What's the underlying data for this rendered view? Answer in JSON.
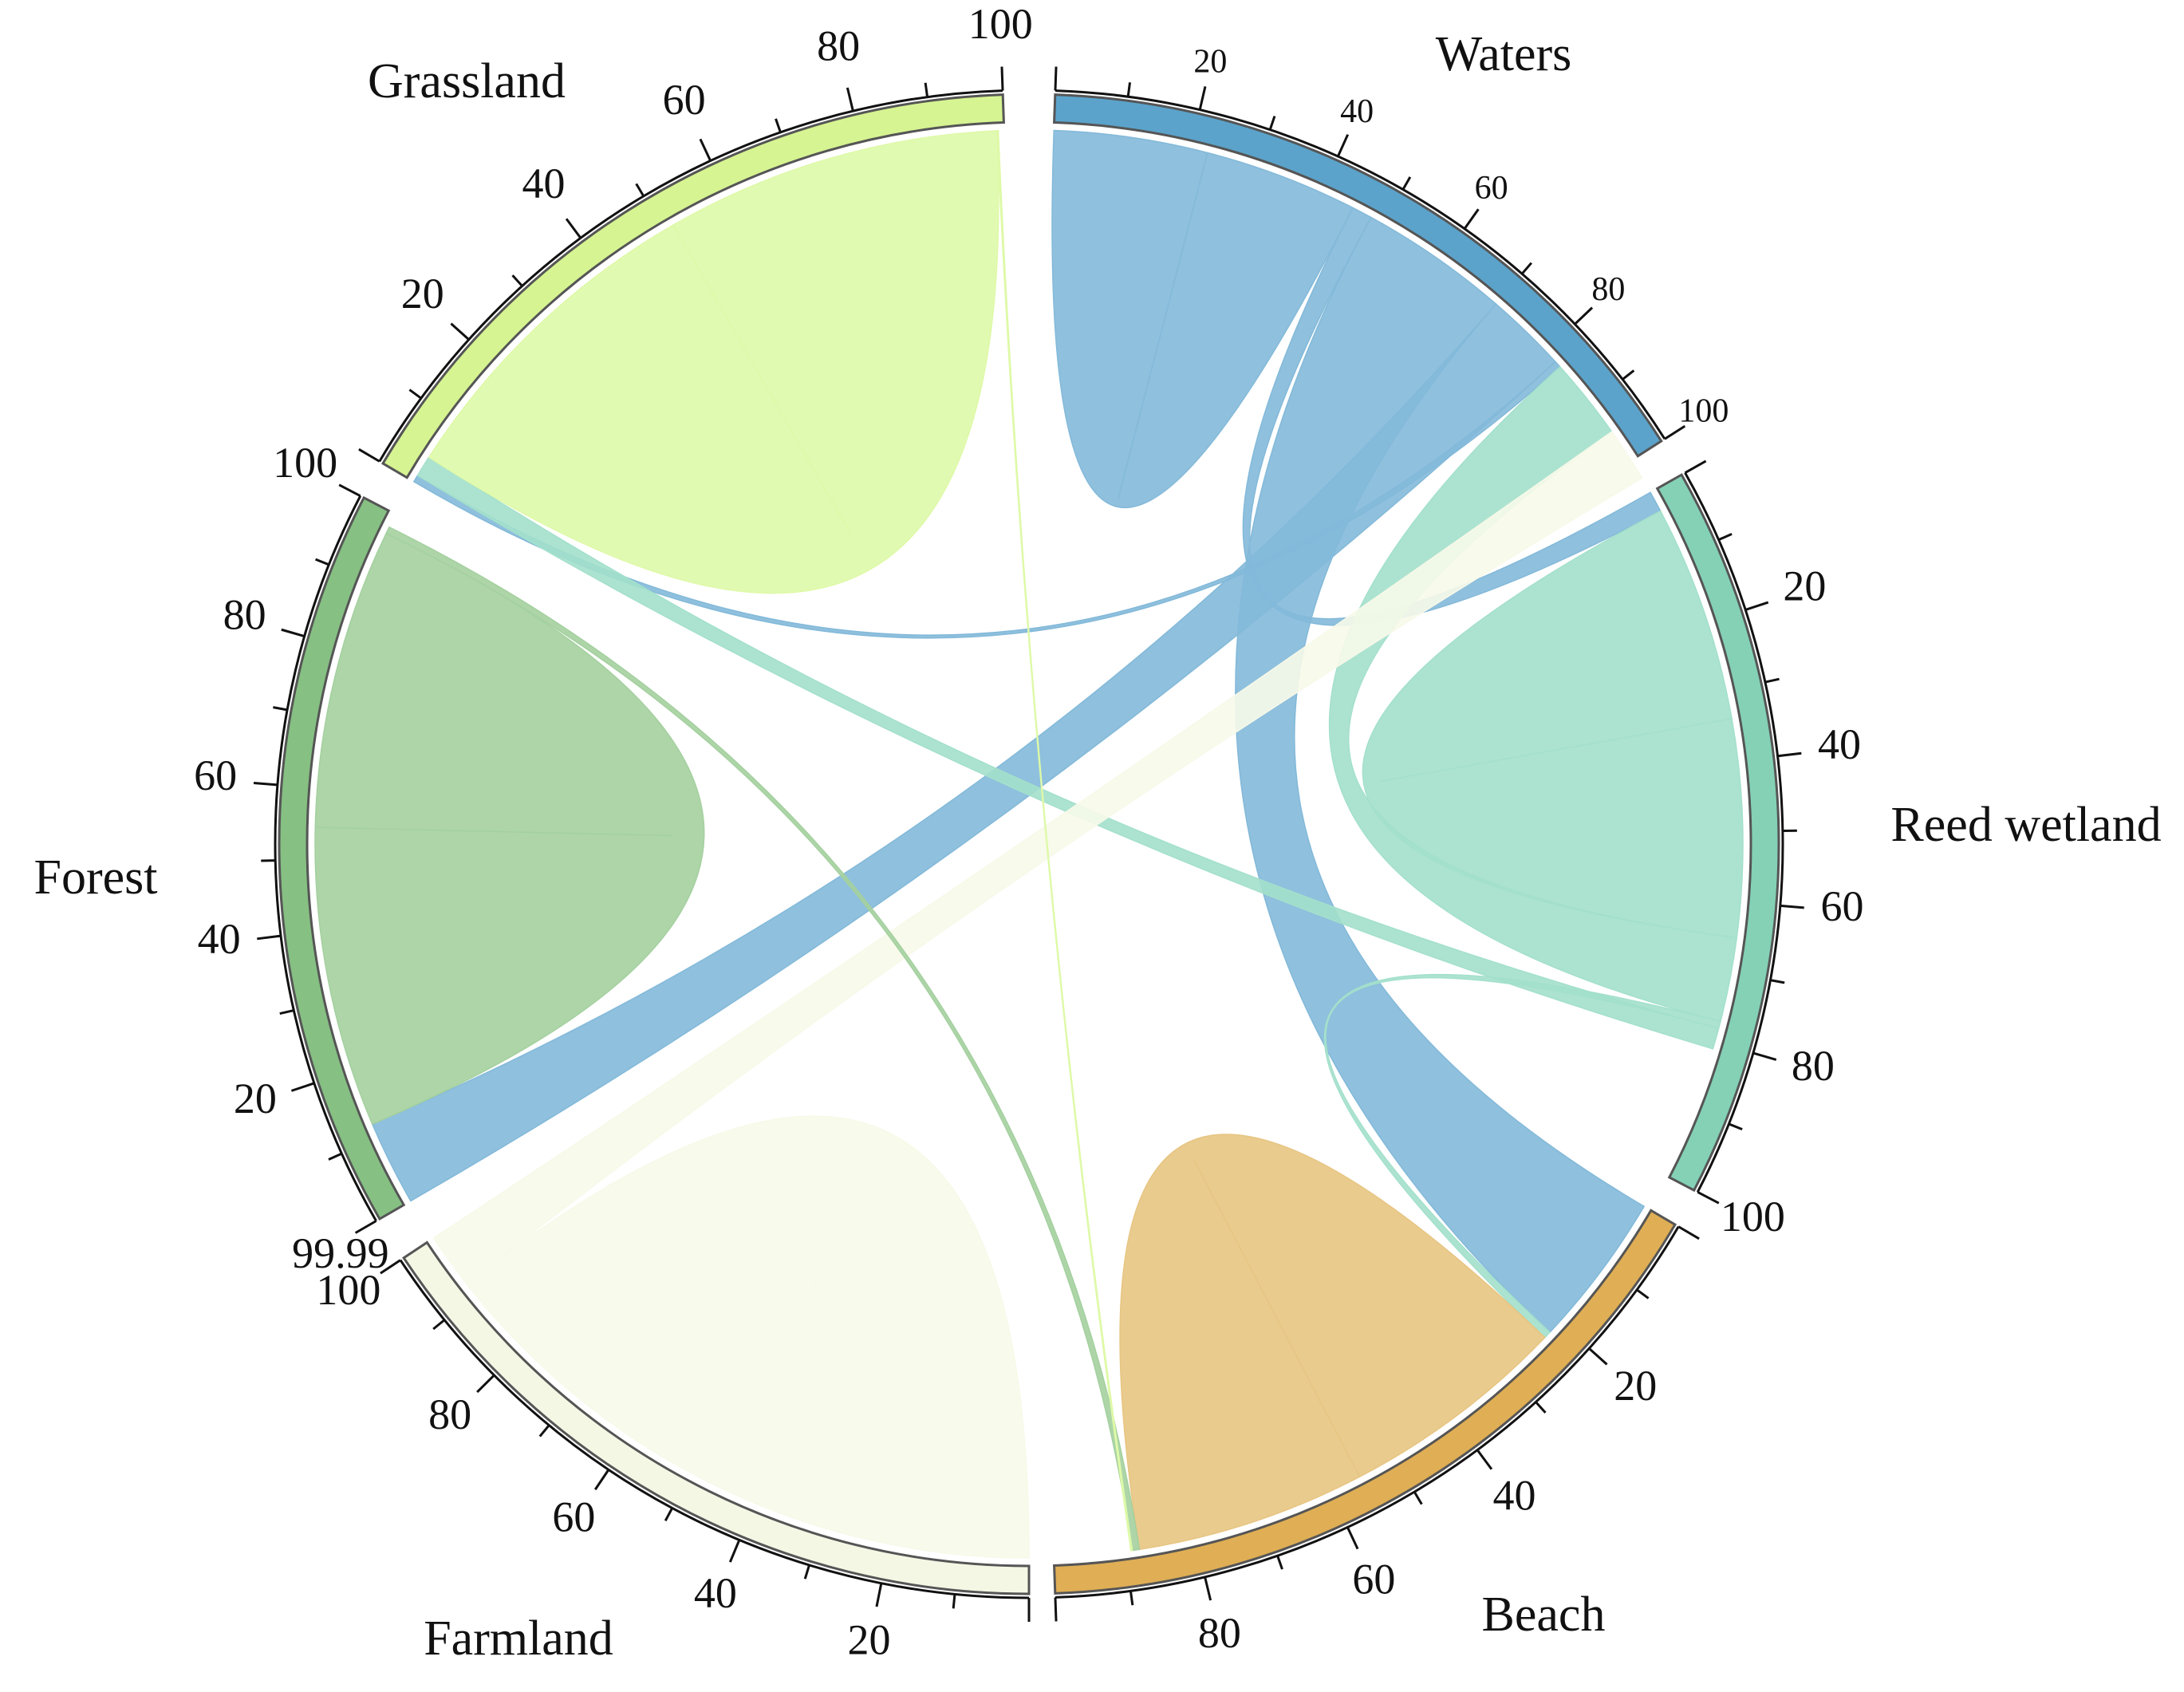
{
  "chart_data": {
    "type": "chord",
    "title": "",
    "groups": [
      {
        "name": "Waters",
        "color": "#5ba3cb",
        "chord_color": "#83b9d9",
        "ticks": [
          "20",
          "40",
          "60",
          "80",
          "100"
        ]
      },
      {
        "name": "Reed wetland",
        "color": "#84d1b6",
        "chord_color": "#a3e0cb",
        "ticks": [
          "20",
          "40",
          "60",
          "80",
          "100"
        ]
      },
      {
        "name": "Beach",
        "color": "#dfae55",
        "chord_color": "#e7c582",
        "ticks": [
          "20",
          "40",
          "60",
          "80"
        ]
      },
      {
        "name": "Farmland",
        "color": "#f4f7e4",
        "chord_color": "#f7f9e9",
        "ticks": [
          "20",
          "40",
          "60",
          "80",
          "100"
        ],
        "end_label": "99.99"
      },
      {
        "name": "Forest",
        "color": "#86c083",
        "chord_color": "#a4d09f",
        "ticks": [
          "20",
          "40",
          "60",
          "80",
          "100"
        ]
      },
      {
        "name": "Grassland",
        "color": "#d6f492",
        "chord_color": "#def9a8",
        "ticks": [
          "20",
          "40",
          "60",
          "80",
          "100"
        ]
      }
    ],
    "flows_percent": [
      {
        "source": "Waters",
        "target": "Waters",
        "value": 45
      },
      {
        "source": "Waters",
        "target": "Reed wetland",
        "value": 3
      },
      {
        "source": "Waters",
        "target": "Beach",
        "value": 22
      },
      {
        "source": "Waters",
        "target": "Forest",
        "value": 12
      },
      {
        "source": "Waters",
        "target": "Grassland",
        "value": 1
      },
      {
        "source": "Reed wetland",
        "target": "Reed wetland",
        "value": 62
      },
      {
        "source": "Reed wetland",
        "target": "Waters",
        "value": 12
      },
      {
        "source": "Reed wetland",
        "target": "Beach",
        "value": 1
      },
      {
        "source": "Reed wetland",
        "target": "Grassland",
        "value": 3
      },
      {
        "source": "Beach",
        "target": "Beach",
        "value": 65
      },
      {
        "source": "Farmland",
        "target": "Farmland",
        "value": 92
      },
      {
        "source": "Farmland",
        "target": "Waters",
        "value": 8
      },
      {
        "source": "Forest",
        "target": "Forest",
        "value": 85
      },
      {
        "source": "Forest",
        "target": "Beach",
        "value": 1
      },
      {
        "source": "Grassland",
        "target": "Grassland",
        "value": 95
      },
      {
        "source": "Grassland",
        "target": "Beach",
        "value": 0.2
      }
    ]
  }
}
